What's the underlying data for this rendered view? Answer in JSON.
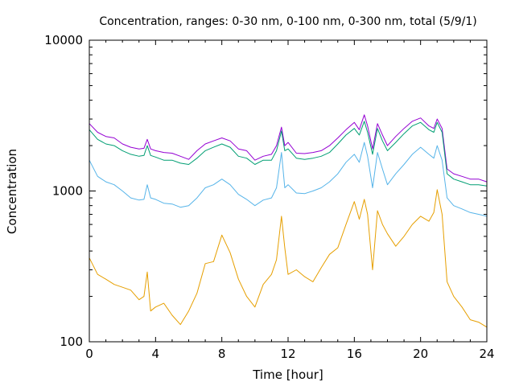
{
  "chart_data": {
    "type": "line",
    "title": "Concentration, ranges: 0-30 nm, 0-100 nm, 0-300 nm, total (5/9/1)",
    "xlabel": "Time [hour]",
    "ylabel": "Concentration",
    "xlim": [
      0,
      24
    ],
    "ylim": [
      100,
      10000
    ],
    "yscale": "log",
    "grid": false,
    "legend": "none",
    "x_ticks": [
      "0",
      "4",
      "8",
      "12",
      "16",
      "20",
      "24"
    ],
    "y_ticks": [
      "100",
      "1000",
      "10000"
    ],
    "x": [
      0,
      0.5,
      1,
      1.5,
      2,
      2.5,
      3,
      3.3,
      3.5,
      3.7,
      4,
      4.5,
      5,
      5.5,
      6,
      6.5,
      7,
      7.5,
      8,
      8.5,
      9,
      9.5,
      10,
      10.5,
      11,
      11.3,
      11.6,
      11.8,
      12,
      12.5,
      13,
      13.5,
      14,
      14.5,
      15,
      15.5,
      16,
      16.3,
      16.6,
      16.8,
      17.1,
      17.4,
      17.7,
      18,
      18.5,
      19,
      19.5,
      20,
      20.5,
      20.8,
      21,
      21.3,
      21.6,
      22,
      22.5,
      23,
      23.5,
      24
    ],
    "series": [
      {
        "color": "#9400d3",
        "values": [
          2800,
          2450,
          2300,
          2250,
          2050,
          1950,
          1900,
          1920,
          2200,
          1900,
          1850,
          1800,
          1780,
          1700,
          1620,
          1850,
          2050,
          2150,
          2250,
          2150,
          1900,
          1850,
          1600,
          1700,
          1750,
          2000,
          2650,
          2000,
          2100,
          1780,
          1770,
          1800,
          1850,
          2000,
          2250,
          2550,
          2850,
          2550,
          3200,
          2700,
          1900,
          2800,
          2350,
          2000,
          2300,
          2600,
          2900,
          3050,
          2700,
          2600,
          3000,
          2600,
          1400,
          1300,
          1250,
          1200,
          1200,
          1150
        ]
      },
      {
        "color": "#009e73",
        "values": [
          2550,
          2200,
          2050,
          2000,
          1850,
          1750,
          1700,
          1720,
          2000,
          1720,
          1680,
          1600,
          1600,
          1530,
          1500,
          1650,
          1850,
          1950,
          2050,
          1950,
          1700,
          1650,
          1500,
          1600,
          1600,
          1850,
          2500,
          1850,
          1900,
          1650,
          1620,
          1650,
          1700,
          1800,
          2050,
          2350,
          2600,
          2350,
          2900,
          2450,
          1750,
          2600,
          2150,
          1850,
          2100,
          2400,
          2700,
          2850,
          2550,
          2450,
          2850,
          2450,
          1300,
          1200,
          1150,
          1100,
          1100,
          1080
        ]
      },
      {
        "color": "#56b4e9",
        "values": [
          1600,
          1250,
          1150,
          1100,
          1000,
          900,
          870,
          880,
          1100,
          900,
          880,
          830,
          820,
          780,
          800,
          900,
          1050,
          1100,
          1200,
          1100,
          950,
          880,
          800,
          870,
          900,
          1050,
          1800,
          1050,
          1100,
          970,
          960,
          1000,
          1050,
          1150,
          1300,
          1550,
          1750,
          1550,
          2100,
          1700,
          1050,
          1800,
          1400,
          1100,
          1300,
          1500,
          1750,
          1950,
          1750,
          1650,
          2000,
          1600,
          900,
          800,
          760,
          720,
          700,
          680
        ]
      },
      {
        "color": "#e69f00",
        "values": [
          360,
          280,
          260,
          240,
          230,
          220,
          190,
          200,
          290,
          160,
          170,
          180,
          150,
          130,
          160,
          210,
          330,
          340,
          510,
          390,
          260,
          200,
          170,
          240,
          280,
          350,
          680,
          420,
          280,
          300,
          270,
          250,
          310,
          380,
          420,
          600,
          850,
          650,
          880,
          700,
          300,
          740,
          600,
          520,
          430,
          500,
          600,
          680,
          630,
          720,
          1020,
          700,
          250,
          200,
          170,
          140,
          135,
          125
        ]
      }
    ]
  }
}
